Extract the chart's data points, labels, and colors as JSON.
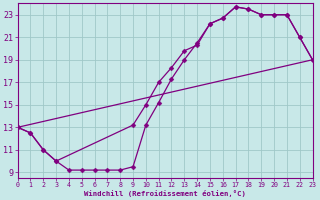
{
  "bg_color": "#c8e8e8",
  "line_color": "#800080",
  "grid_color": "#a0c8c8",
  "xlabel": "Windchill (Refroidissement éolien,°C)",
  "xlim": [
    0,
    23
  ],
  "ylim": [
    8.5,
    24
  ],
  "yticks": [
    9,
    11,
    13,
    15,
    17,
    19,
    21,
    23
  ],
  "xticks": [
    0,
    1,
    2,
    3,
    4,
    5,
    6,
    7,
    8,
    9,
    10,
    11,
    12,
    13,
    14,
    15,
    16,
    17,
    18,
    19,
    20,
    21,
    22,
    23
  ],
  "line1_x": [
    0,
    1,
    2,
    3,
    4,
    5,
    6,
    7,
    8,
    9,
    10,
    11,
    12,
    13,
    14,
    15,
    16,
    17,
    18,
    19,
    20,
    21,
    22,
    23
  ],
  "line1_y": [
    13,
    12.5,
    11.0,
    10.0,
    9.2,
    9.2,
    9.2,
    9.2,
    9.2,
    9.5,
    13.2,
    15.2,
    17.3,
    19.0,
    20.5,
    22.2,
    22.7,
    23.7,
    23.5,
    23.0,
    23.0,
    23.0,
    21.0,
    19.0
  ],
  "line2_x": [
    0,
    1,
    2,
    3,
    9,
    10,
    11,
    12,
    13,
    14,
    15,
    16,
    17,
    18,
    19,
    20,
    21,
    22,
    23
  ],
  "line2_y": [
    13,
    12.5,
    11.0,
    10.0,
    13.2,
    15.0,
    17.0,
    18.3,
    19.8,
    20.3,
    22.2,
    22.7,
    23.7,
    23.5,
    23.0,
    23.0,
    23.0,
    21.0,
    19.0
  ],
  "line3_x": [
    0,
    23
  ],
  "line3_y": [
    13,
    19
  ],
  "marker": "D",
  "markersize": 2.5,
  "linewidth": 0.9
}
